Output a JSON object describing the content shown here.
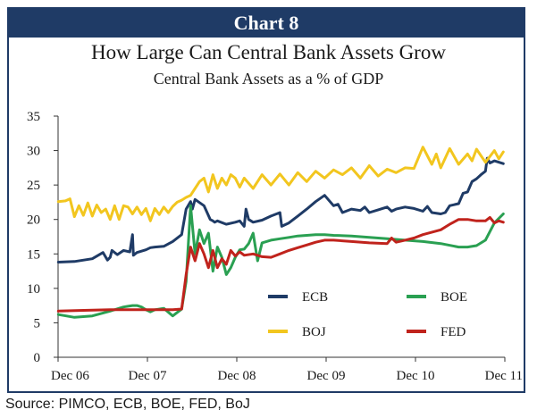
{
  "banner": "Chart 8",
  "source": "Source: PIMCO, ECB, BOE, FED, BoJ",
  "chart_data": {
    "type": "line",
    "title": "How Large Can Central Bank Assets Grow",
    "subtitle": "Central Bank Assets as a % of GDP",
    "xlabel": "",
    "ylabel": "",
    "xlim": [
      2006.917,
      2011.917
    ],
    "ylim": [
      0,
      35
    ],
    "yticks": [
      0,
      5,
      10,
      15,
      20,
      25,
      30,
      35
    ],
    "xticks": [
      {
        "x": 2006.917,
        "label": "Dec 06"
      },
      {
        "x": 2007.917,
        "label": "Dec 07"
      },
      {
        "x": 2008.917,
        "label": "Dec 08"
      },
      {
        "x": 2009.917,
        "label": "Dec 09"
      },
      {
        "x": 2010.917,
        "label": "Dec 10"
      },
      {
        "x": 2011.917,
        "label": "Dec 11"
      }
    ],
    "grid": false,
    "legend_position": "lower-right",
    "series": [
      {
        "name": "ECB",
        "color": "#1f3b66",
        "x": [
          2006.92,
          2007.1,
          2007.3,
          2007.42,
          2007.47,
          2007.5,
          2007.52,
          2007.58,
          2007.65,
          2007.72,
          2007.75,
          2007.76,
          2007.8,
          2007.9,
          2007.95,
          2008.0,
          2008.1,
          2008.2,
          2008.3,
          2008.35,
          2008.4,
          2008.42,
          2008.45,
          2008.55,
          2008.62,
          2008.65,
          2008.67,
          2008.7,
          2008.8,
          2008.9,
          2008.95,
          2009.0,
          2009.02,
          2009.05,
          2009.1,
          2009.2,
          2009.3,
          2009.4,
          2009.42,
          2009.5,
          2009.6,
          2009.7,
          2009.8,
          2009.9,
          2010.0,
          2010.05,
          2010.1,
          2010.2,
          2010.3,
          2010.35,
          2010.4,
          2010.5,
          2010.6,
          2010.65,
          2010.7,
          2010.8,
          2010.9,
          2011.0,
          2011.05,
          2011.1,
          2011.2,
          2011.25,
          2011.3,
          2011.4,
          2011.45,
          2011.5,
          2011.55,
          2011.6,
          2011.65,
          2011.7,
          2011.72,
          2011.75,
          2011.8,
          2011.9
        ],
        "y": [
          13.8,
          13.9,
          14.3,
          15.2,
          14.1,
          14.5,
          15.5,
          14.9,
          15.5,
          15.3,
          17.8,
          14.8,
          15.2,
          15.6,
          15.9,
          16.0,
          16.1,
          16.8,
          17.8,
          21.5,
          22.6,
          21.5,
          22.9,
          22.0,
          20.0,
          19.8,
          19.6,
          19.8,
          19.3,
          19.6,
          19.8,
          19.0,
          21.5,
          20.0,
          19.6,
          19.9,
          20.5,
          21.0,
          19.0,
          19.5,
          20.5,
          21.5,
          22.6,
          23.5,
          22.0,
          22.2,
          21.0,
          21.5,
          21.3,
          21.8,
          21.0,
          21.4,
          21.8,
          21.2,
          21.5,
          21.8,
          21.6,
          21.2,
          21.9,
          21.0,
          20.8,
          21.0,
          22.0,
          22.3,
          23.8,
          24.0,
          25.5,
          25.9,
          26.5,
          27.0,
          28.9,
          28.2,
          28.5,
          28.1
        ]
      },
      {
        "name": "BOJ",
        "color": "#f2c61f",
        "x": [
          2006.92,
          2007.0,
          2007.05,
          2007.1,
          2007.15,
          2007.2,
          2007.25,
          2007.3,
          2007.35,
          2007.4,
          2007.45,
          2007.5,
          2007.55,
          2007.6,
          2007.65,
          2007.7,
          2007.75,
          2007.8,
          2007.85,
          2007.9,
          2007.95,
          2008.0,
          2008.05,
          2008.1,
          2008.15,
          2008.2,
          2008.25,
          2008.3,
          2008.35,
          2008.4,
          2008.45,
          2008.5,
          2008.55,
          2008.6,
          2008.65,
          2008.7,
          2008.75,
          2008.8,
          2008.85,
          2008.9,
          2008.95,
          2009.0,
          2009.1,
          2009.2,
          2009.3,
          2009.4,
          2009.5,
          2009.6,
          2009.7,
          2009.8,
          2009.9,
          2010.0,
          2010.1,
          2010.2,
          2010.3,
          2010.4,
          2010.5,
          2010.6,
          2010.7,
          2010.8,
          2010.9,
          2011.0,
          2011.1,
          2011.15,
          2011.2,
          2011.3,
          2011.4,
          2011.5,
          2011.55,
          2011.6,
          2011.7,
          2011.8,
          2011.85,
          2011.9
        ],
        "y": [
          22.6,
          22.7,
          23.0,
          20.4,
          22.0,
          20.6,
          22.4,
          20.5,
          22.1,
          21.0,
          21.5,
          20.0,
          22.0,
          20.0,
          22.0,
          21.8,
          20.8,
          21.8,
          20.7,
          21.6,
          19.8,
          21.6,
          20.7,
          21.8,
          21.0,
          21.9,
          22.5,
          22.8,
          23.2,
          23.5,
          24.5,
          25.5,
          26.0,
          24.0,
          26.5,
          24.5,
          26.0,
          25.0,
          26.5,
          26.0,
          24.7,
          26.0,
          24.5,
          26.5,
          25.0,
          26.6,
          25.0,
          26.8,
          25.5,
          27.0,
          26.0,
          27.2,
          26.5,
          27.5,
          26.0,
          27.8,
          26.3,
          27.3,
          26.8,
          27.5,
          27.4,
          30.5,
          28.0,
          29.5,
          27.5,
          30.3,
          28.0,
          29.5,
          28.5,
          30.2,
          28.3,
          30.0,
          28.8,
          29.8
        ]
      },
      {
        "name": "BOE",
        "color": "#2aa052",
        "x": [
          2006.92,
          2007.1,
          2007.3,
          2007.5,
          2007.6,
          2007.65,
          2007.7,
          2007.75,
          2007.8,
          2007.85,
          2007.9,
          2007.95,
          2008.0,
          2008.1,
          2008.2,
          2008.3,
          2008.35,
          2008.4,
          2008.45,
          2008.5,
          2008.55,
          2008.6,
          2008.65,
          2008.7,
          2008.75,
          2008.8,
          2008.85,
          2008.9,
          2008.95,
          2009.0,
          2009.05,
          2009.1,
          2009.15,
          2009.2,
          2009.25,
          2009.3,
          2009.4,
          2009.5,
          2009.6,
          2009.7,
          2009.8,
          2009.9,
          2010.0,
          2010.2,
          2010.4,
          2010.6,
          2010.8,
          2011.0,
          2011.2,
          2011.4,
          2011.5,
          2011.6,
          2011.7,
          2011.8,
          2011.9
        ],
        "y": [
          6.2,
          5.8,
          6.0,
          6.7,
          7.1,
          7.3,
          7.4,
          7.5,
          7.5,
          7.3,
          6.9,
          6.6,
          6.9,
          7.1,
          6.0,
          7.0,
          11.0,
          22.0,
          15.0,
          18.5,
          16.5,
          18.0,
          12.5,
          16.0,
          14.5,
          12.0,
          13.0,
          14.5,
          15.6,
          15.7,
          16.5,
          18.0,
          14.0,
          16.6,
          16.8,
          17.0,
          17.2,
          17.4,
          17.6,
          17.7,
          17.8,
          17.8,
          17.7,
          17.6,
          17.4,
          17.2,
          17.0,
          16.8,
          16.5,
          16.0,
          16.0,
          16.2,
          17.0,
          19.5,
          20.8
        ]
      },
      {
        "name": "FED",
        "color": "#c0231c",
        "x": [
          2006.92,
          2007.2,
          2007.5,
          2007.8,
          2008.0,
          2008.2,
          2008.3,
          2008.35,
          2008.4,
          2008.45,
          2008.5,
          2008.55,
          2008.6,
          2008.65,
          2008.7,
          2008.75,
          2008.8,
          2008.85,
          2008.9,
          2008.95,
          2009.0,
          2009.1,
          2009.2,
          2009.3,
          2009.4,
          2009.5,
          2009.6,
          2009.7,
          2009.8,
          2009.9,
          2010.0,
          2010.2,
          2010.4,
          2010.6,
          2010.65,
          2010.7,
          2010.8,
          2010.9,
          2011.0,
          2011.2,
          2011.3,
          2011.4,
          2011.5,
          2011.6,
          2011.7,
          2011.75,
          2011.8,
          2011.85,
          2011.9
        ],
        "y": [
          6.7,
          6.8,
          6.9,
          6.9,
          6.9,
          6.9,
          7.0,
          12.0,
          16.0,
          14.0,
          16.5,
          15.0,
          13.0,
          15.5,
          13.0,
          14.3,
          13.5,
          15.5,
          14.7,
          15.3,
          14.8,
          15.0,
          14.6,
          14.5,
          15.0,
          15.5,
          15.9,
          16.3,
          16.7,
          17.0,
          17.0,
          16.8,
          16.6,
          16.5,
          17.3,
          16.7,
          17.0,
          17.3,
          17.8,
          18.5,
          19.3,
          20.0,
          20.0,
          19.8,
          19.8,
          20.3,
          19.5,
          19.8,
          19.6
        ]
      }
    ]
  }
}
